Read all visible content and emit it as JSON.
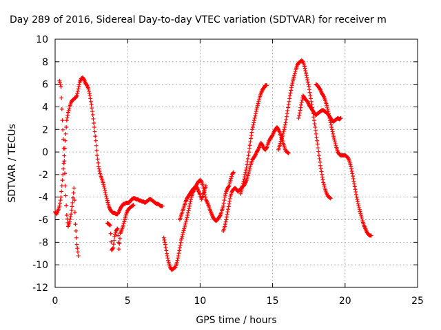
{
  "chart_data": {
    "type": "scatter",
    "title": "Day 289 of 2016, Sidereal Day-to-day VTEC variation (SDTVAR) for receiver m",
    "xlabel": "GPS time / hours",
    "ylabel": "SDTVAR / TECUs",
    "xlim": [
      0,
      25
    ],
    "ylim": [
      -12,
      10
    ],
    "xticks": [
      "0",
      "5",
      "10",
      "15",
      "20",
      "25"
    ],
    "yticks": [
      "-12",
      "-10",
      "-8",
      "-6",
      "-4",
      "-2",
      "0",
      "2",
      "4",
      "6",
      "8",
      "10"
    ],
    "grid": true,
    "marker": "plus",
    "color": "#ff0000",
    "series": [
      {
        "x": [
          0.0,
          0.1,
          0.2,
          0.3,
          0.4,
          0.5,
          0.6,
          0.7,
          0.8,
          0.9,
          1.0,
          1.1,
          1.2,
          1.3,
          1.4,
          1.5,
          1.6,
          1.7,
          1.8,
          1.9,
          2.0,
          2.1,
          2.2,
          2.3,
          2.4,
          2.5,
          2.6,
          2.7,
          2.8,
          2.9,
          3.0,
          3.1,
          3.2,
          3.3,
          3.4,
          3.5,
          3.6,
          3.7,
          3.8,
          3.9,
          4.0,
          4.1,
          4.2,
          4.3,
          4.4,
          4.5,
          4.6,
          4.7,
          4.8,
          4.9,
          5.0,
          5.1,
          5.2,
          5.3,
          5.4,
          5.5,
          5.6,
          5.7,
          5.8,
          5.9,
          6.0,
          6.1,
          6.2,
          6.3,
          6.4,
          6.5,
          6.6,
          6.7,
          6.8,
          6.9,
          7.0,
          7.1,
          7.2,
          7.3,
          7.4
        ],
        "y": [
          -5.3,
          -5.5,
          -5.2,
          -4.8,
          -4.0,
          -2.5,
          -1.0,
          1.0,
          2.8,
          3.5,
          4.0,
          4.4,
          4.6,
          4.7,
          4.8,
          5.0,
          5.6,
          6.2,
          6.5,
          6.6,
          6.4,
          6.1,
          5.9,
          5.6,
          5.0,
          4.2,
          3.3,
          2.2,
          1.0,
          -0.3,
          -1.3,
          -1.9,
          -2.3,
          -2.7,
          -3.2,
          -3.8,
          -4.3,
          -4.8,
          -5.1,
          -5.3,
          -5.4,
          -5.4,
          -5.5,
          -5.5,
          -5.3,
          -5.0,
          -4.8,
          -4.6,
          -4.6,
          -4.5,
          -4.5,
          -4.5,
          -4.3,
          -4.2,
          -4.1,
          -4.1,
          -4.2,
          -4.2,
          -4.3,
          -4.3,
          -4.4,
          -4.4,
          -4.5,
          -4.4,
          -4.3,
          -4.2,
          -4.2,
          -4.3,
          -4.4,
          -4.5,
          -4.6,
          -4.6,
          -4.7,
          -4.8,
          -4.8
        ]
      },
      {
        "x": [
          0.3,
          0.4,
          0.5,
          0.6,
          0.7,
          0.8,
          0.9,
          1.0,
          1.1,
          1.2,
          1.3,
          1.4,
          1.5,
          1.6
        ],
        "y": [
          6.3,
          5.8,
          2.8,
          0.3,
          -3.0,
          -5.6,
          -6.6,
          -6.2,
          -5.5,
          -4.5,
          -3.2,
          -6.4,
          -8.2,
          -9.2
        ]
      },
      {
        "x": [
          3.6,
          3.7,
          3.8,
          3.9,
          4.0,
          4.1,
          4.2,
          4.3,
          4.4,
          4.5,
          4.6,
          4.7,
          4.8,
          4.9,
          5.0,
          5.1,
          5.2,
          5.3,
          5.4
        ],
        "y": [
          -6.3,
          -6.4,
          -6.5,
          -8.7,
          -8.5,
          -7.5,
          -7.0,
          -6.8,
          -8.6,
          -7.2,
          -6.9,
          -6.5,
          -6.0,
          -5.5,
          -5.2,
          -5.0,
          -4.9,
          -4.8,
          -4.7
        ]
      },
      {
        "x": [
          7.5,
          7.6,
          7.7,
          7.8,
          7.9,
          8.0,
          8.1,
          8.2,
          8.3,
          8.4,
          8.5,
          8.6,
          8.7,
          8.8,
          8.9,
          9.0,
          9.1,
          9.2,
          9.3,
          9.4,
          9.5,
          9.6,
          9.7,
          9.8,
          9.9,
          10.0,
          10.1,
          10.2,
          10.3,
          10.4,
          10.5,
          10.6,
          10.7,
          10.8,
          10.9,
          11.0,
          11.1,
          11.2,
          11.3,
          11.4,
          11.5,
          11.6,
          11.7,
          11.8,
          11.9,
          12.0,
          12.1,
          12.2,
          12.3
        ],
        "y": [
          -7.6,
          -8.2,
          -9.0,
          -9.6,
          -10.1,
          -10.4,
          -10.4,
          -10.3,
          -10.2,
          -9.8,
          -9.2,
          -8.5,
          -7.8,
          -7.3,
          -6.8,
          -6.3,
          -5.8,
          -5.2,
          -4.6,
          -4.0,
          -3.6,
          -3.3,
          -3.1,
          -2.8,
          -2.6,
          -2.5,
          -2.6,
          -3.0,
          -3.6,
          -4.2,
          -4.5,
          -4.8,
          -5.2,
          -5.5,
          -5.8,
          -6.0,
          -6.1,
          -6.0,
          -5.8,
          -5.6,
          -5.2,
          -4.8,
          -4.0,
          -3.5,
          -3.2,
          -3.0,
          -2.5,
          -2.0,
          -1.8
        ]
      },
      {
        "x": [
          8.6,
          8.7,
          8.8,
          8.9,
          9.0,
          9.1,
          9.2,
          9.3,
          9.4,
          9.5,
          9.6,
          9.7,
          9.8,
          9.9,
          10.0,
          10.1,
          10.2,
          10.3,
          10.4
        ],
        "y": [
          -6.0,
          -5.6,
          -5.2,
          -4.8,
          -4.4,
          -4.1,
          -3.9,
          -3.7,
          -3.5,
          -3.3,
          -3.2,
          -3.0,
          -3.2,
          -3.5,
          -3.8,
          -4.2,
          -3.8,
          -3.4,
          -3.0
        ]
      },
      {
        "x": [
          11.6,
          11.7,
          11.8,
          11.9,
          12.0,
          12.1,
          12.2,
          12.3,
          12.4,
          12.5,
          12.6,
          12.7,
          12.8,
          12.9,
          13.0,
          13.1,
          13.2,
          13.3,
          13.4,
          13.5,
          13.6,
          13.7,
          13.8,
          13.9,
          14.0,
          14.1,
          14.2,
          14.3,
          14.4,
          14.5,
          14.6,
          14.7,
          14.8,
          14.9,
          15.0,
          15.1,
          15.2,
          15.3,
          15.4,
          15.5,
          15.6,
          15.7,
          15.8,
          15.9,
          16.0,
          16.1
        ],
        "y": [
          -7.0,
          -6.6,
          -6.0,
          -5.3,
          -4.6,
          -3.9,
          -3.5,
          -3.3,
          -3.2,
          -3.3,
          -3.5,
          -3.4,
          -3.3,
          -3.1,
          -3.0,
          -2.8,
          -2.5,
          -2.1,
          -1.6,
          -1.1,
          -0.7,
          -0.5,
          -0.3,
          0.0,
          0.2,
          0.5,
          0.8,
          0.6,
          0.3,
          0.2,
          0.4,
          0.8,
          1.1,
          1.3,
          1.5,
          1.8,
          2.0,
          2.2,
          2.0,
          1.7,
          1.3,
          0.9,
          0.5,
          0.1,
          0.0,
          -0.1
        ]
      },
      {
        "x": [
          12.8,
          12.9,
          13.0,
          13.1,
          13.2,
          13.3,
          13.4,
          13.5,
          13.6,
          13.7,
          13.8,
          13.9,
          14.0,
          14.1,
          14.2,
          14.3,
          14.4,
          14.5,
          14.6
        ],
        "y": [
          -3.7,
          -3.2,
          -2.6,
          -2.0,
          -1.4,
          -0.6,
          0.3,
          1.2,
          2.0,
          2.6,
          3.2,
          3.8,
          4.3,
          4.8,
          5.2,
          5.5,
          5.7,
          5.9,
          5.9
        ]
      },
      {
        "x": [
          15.4,
          15.5,
          15.6,
          15.7,
          15.8,
          15.9,
          16.0,
          16.1,
          16.2,
          16.3,
          16.4,
          16.5,
          16.6,
          16.7,
          16.8,
          16.9,
          17.0,
          17.1,
          17.2,
          17.3,
          17.4,
          17.5,
          17.6,
          17.7,
          17.8,
          17.9,
          18.0,
          18.1,
          18.2,
          18.3,
          18.4,
          18.5,
          18.6,
          18.7,
          18.8,
          18.9,
          19.0
        ],
        "y": [
          0.2,
          0.6,
          1.1,
          1.5,
          2.0,
          2.6,
          3.4,
          4.2,
          5.0,
          5.7,
          6.3,
          6.8,
          7.3,
          7.7,
          7.9,
          8.0,
          8.1,
          8.0,
          7.6,
          7.0,
          6.4,
          5.8,
          5.0,
          4.2,
          3.4,
          2.5,
          1.6,
          0.7,
          -0.3,
          -1.2,
          -2.0,
          -2.7,
          -3.2,
          -3.6,
          -3.9,
          -4.0,
          -4.1
        ]
      },
      {
        "x": [
          16.8,
          16.9,
          17.0,
          17.1,
          17.2,
          17.3,
          17.4,
          17.5,
          17.6,
          17.7,
          17.8,
          17.9,
          18.0,
          18.1,
          18.2,
          18.3,
          18.4,
          18.5,
          18.6,
          18.7,
          18.8,
          18.9,
          19.0,
          19.1,
          19.2,
          19.3,
          19.4,
          19.5,
          19.6,
          19.7
        ],
        "y": [
          3.0,
          3.7,
          4.4,
          5.0,
          4.8,
          4.6,
          4.5,
          4.2,
          4.0,
          3.8,
          3.6,
          3.4,
          3.3,
          3.4,
          3.5,
          3.6,
          3.7,
          3.7,
          3.6,
          3.5,
          3.4,
          3.2,
          3.0,
          2.8,
          2.7,
          2.8,
          2.9,
          3.0,
          2.9,
          3.0
        ]
      },
      {
        "x": [
          18.0,
          18.1,
          18.2,
          18.3,
          18.4,
          18.5,
          18.6,
          18.7,
          18.8,
          18.9,
          19.0,
          19.1,
          19.2,
          19.3,
          19.4,
          19.5,
          19.6,
          19.7,
          19.8,
          19.9,
          20.0,
          20.1,
          20.2,
          20.3,
          20.4,
          20.5,
          20.6,
          20.7,
          20.8,
          20.9,
          21.0,
          21.1,
          21.2,
          21.3,
          21.4,
          21.5,
          21.6,
          21.7,
          21.8
        ],
        "y": [
          6.0,
          5.9,
          5.7,
          5.5,
          5.2,
          5.0,
          4.7,
          4.3,
          3.8,
          3.2,
          2.6,
          2.0,
          1.4,
          0.9,
          0.4,
          0.0,
          -0.2,
          -0.3,
          -0.3,
          -0.3,
          -0.3,
          -0.4,
          -0.5,
          -0.8,
          -1.3,
          -1.9,
          -2.6,
          -3.3,
          -4.0,
          -4.6,
          -5.1,
          -5.6,
          -6.1,
          -6.5,
          -6.8,
          -7.1,
          -7.3,
          -7.4,
          -7.4
        ]
      }
    ]
  }
}
